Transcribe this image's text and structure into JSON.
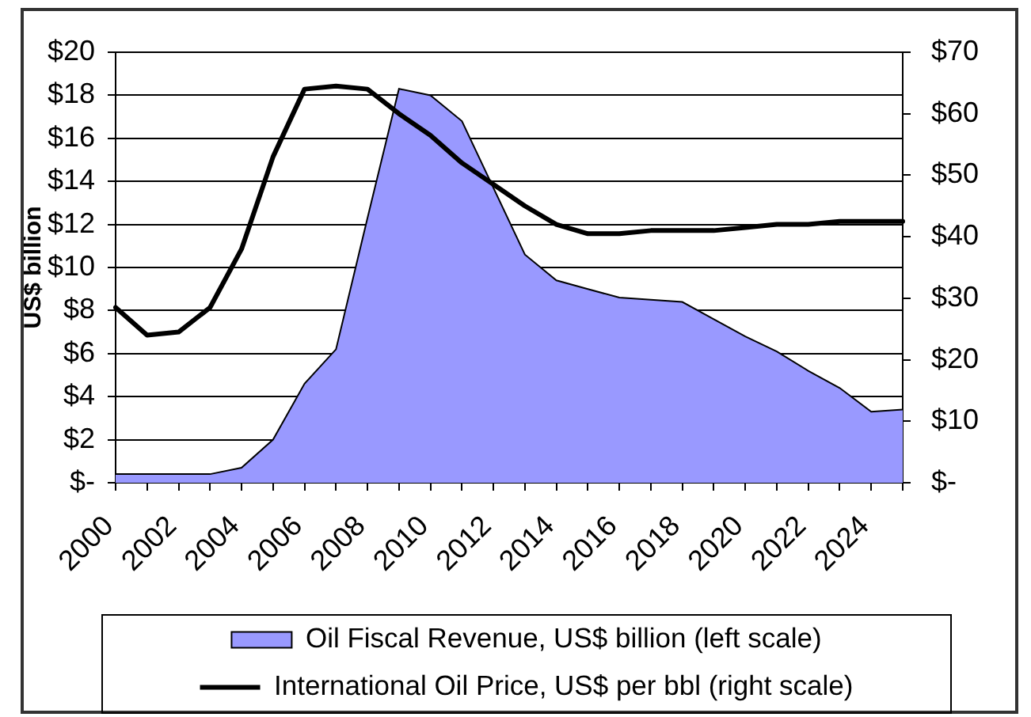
{
  "chart_data": {
    "type": "area",
    "ylabel": "US$ billion",
    "categories": [
      "2000",
      null,
      "2002",
      null,
      "2004",
      null,
      "2006",
      null,
      "2008",
      null,
      "2010",
      null,
      "2012",
      null,
      "2014",
      null,
      "2016",
      null,
      "2018",
      null,
      "2020",
      null,
      "2022",
      null,
      "2024",
      null
    ],
    "series": [
      {
        "name": "Oil Fiscal Revenue, US$ billion (left scale)",
        "type": "area",
        "color": "#9999ff",
        "values": [
          0.4,
          0.4,
          0.4,
          0.4,
          0.7,
          2.0,
          4.6,
          6.2,
          12.3,
          18.3,
          18.0,
          16.8,
          13.7,
          10.6,
          9.4,
          9.0,
          8.6,
          8.5,
          8.4,
          7.6,
          6.8,
          6.1,
          5.2,
          4.4,
          3.3,
          3.4
        ]
      },
      {
        "name": "International Oil Price, US$ per bbl (right scale)",
        "type": "line",
        "color": "#000000",
        "axis": "y2",
        "values": [
          28.5,
          24,
          24.5,
          28.5,
          38,
          53,
          64,
          64.5,
          64,
          60,
          56.5,
          52,
          48.5,
          45,
          42,
          40.5,
          40.5,
          41,
          41,
          41,
          41.5,
          42,
          42,
          42.5,
          42.5,
          42.5
        ]
      }
    ],
    "ylim": [
      0,
      20
    ],
    "yticks": [
      {
        "value": 0,
        "label": "$-"
      },
      {
        "value": 2,
        "label": "$2"
      },
      {
        "value": 4,
        "label": "$4"
      },
      {
        "value": 6,
        "label": "$6"
      },
      {
        "value": 8,
        "label": "$8"
      },
      {
        "value": 10,
        "label": "$10"
      },
      {
        "value": 12,
        "label": "$12"
      },
      {
        "value": 14,
        "label": "$14"
      },
      {
        "value": 16,
        "label": "$16"
      },
      {
        "value": 18,
        "label": "$18"
      },
      {
        "value": 20,
        "label": "$20"
      }
    ],
    "y2lim": [
      0,
      70
    ],
    "y2ticks": [
      {
        "value": 0,
        "label": "$-"
      },
      {
        "value": 10,
        "label": "$10"
      },
      {
        "value": 20,
        "label": "$20"
      },
      {
        "value": 30,
        "label": "$30"
      },
      {
        "value": 40,
        "label": "$40"
      },
      {
        "value": 50,
        "label": "$50"
      },
      {
        "value": 60,
        "label": "$60"
      },
      {
        "value": 70,
        "label": "$70"
      }
    ],
    "grid": "y",
    "legend": "bottom"
  }
}
